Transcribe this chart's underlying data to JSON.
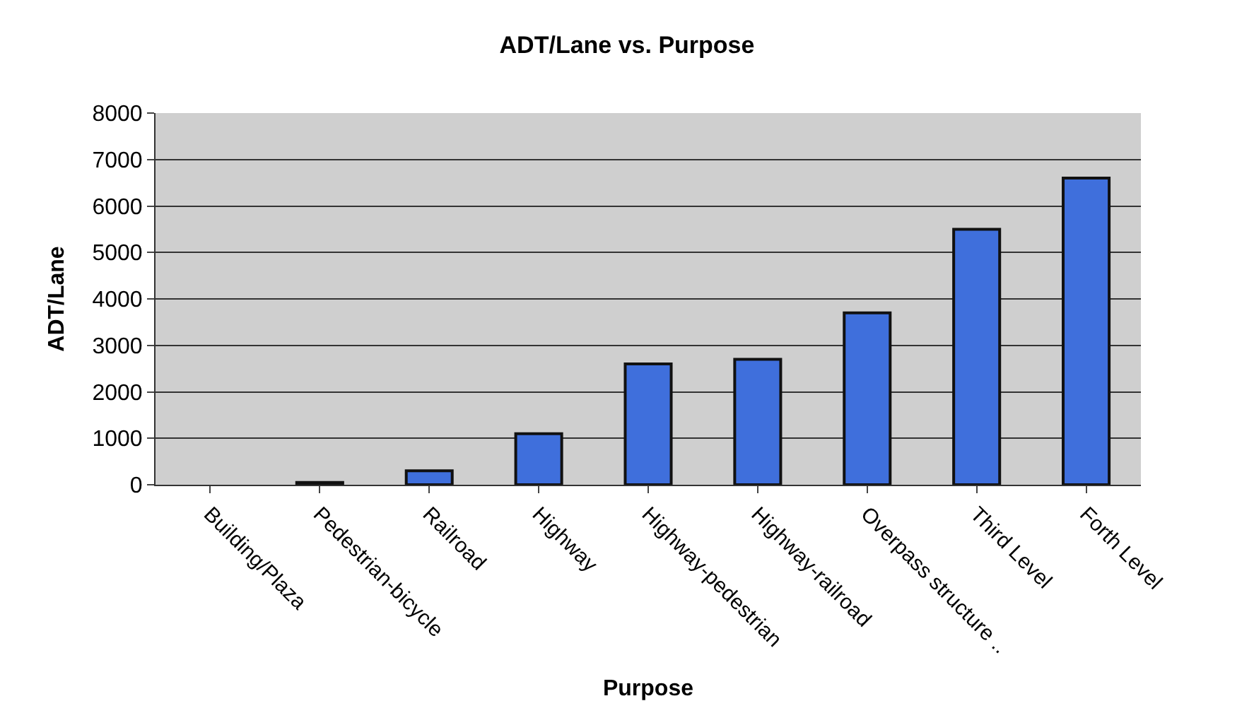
{
  "chart_data": {
    "type": "bar",
    "title": "ADT/Lane vs. Purpose",
    "xlabel": "Purpose",
    "ylabel": "ADT/Lane",
    "categories": [
      "Building/Plaza",
      "Pedestrian-bicycle",
      "Railroad",
      "Highway",
      "Highway-pedestrian",
      "Highway-railroad",
      "Overpass structure ..",
      "Third Level",
      "Forth Level"
    ],
    "values": [
      0,
      50,
      300,
      1100,
      2600,
      2700,
      3700,
      5500,
      6600
    ],
    "color": "#3f6fdc",
    "ylim": [
      0,
      8000
    ],
    "yticks": [
      0,
      1000,
      2000,
      3000,
      4000,
      5000,
      6000,
      7000,
      8000
    ],
    "grid": "y"
  }
}
